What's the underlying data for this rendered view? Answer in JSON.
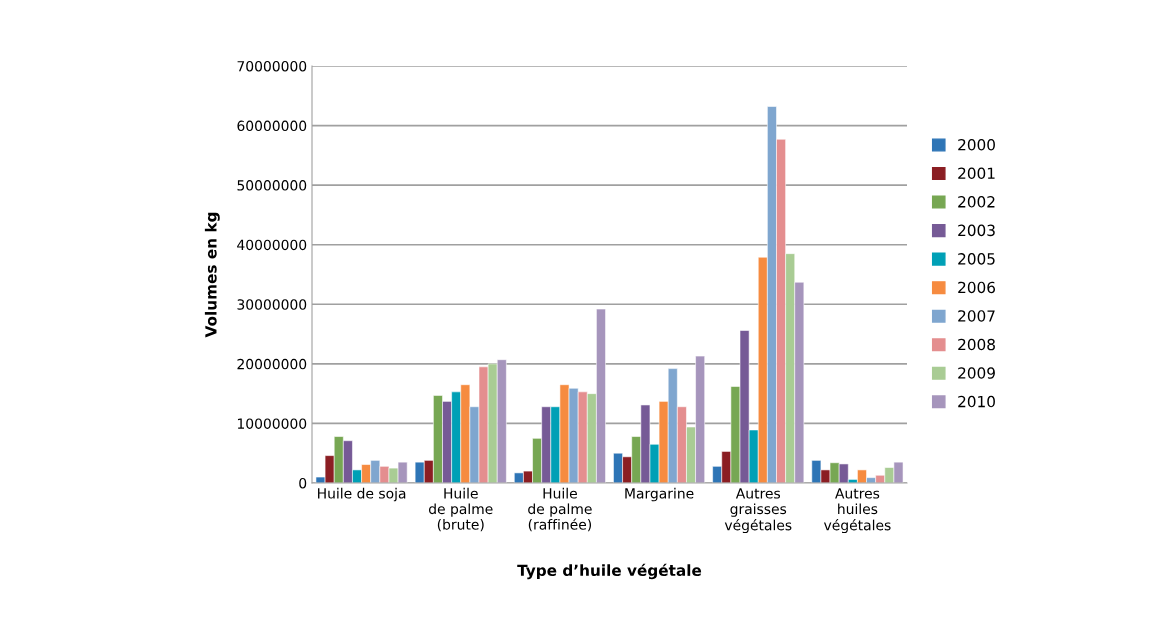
{
  "chart_data": {
    "type": "bar",
    "xlabel": "Type d’huile végétale",
    "ylabel": "Volumes en kg",
    "categories": [
      "Huile de soja",
      "Huile\nde palme\n(brute)",
      "Huile\nde palme\n(raffinée)",
      "Margarine",
      "Autres\ngraisses\nvégétales",
      "Autres\nhuiles\nvégétales"
    ],
    "ylim": [
      0,
      70000000
    ],
    "yticks": [
      0,
      10000000,
      20000000,
      30000000,
      40000000,
      50000000,
      60000000,
      70000000
    ],
    "grid": "y",
    "legend": "right",
    "series": [
      {
        "name": "2000",
        "color": "#2e75b6",
        "values": [
          1000000,
          3500000,
          1700000,
          5000000,
          2800000,
          3800000
        ]
      },
      {
        "name": "2001",
        "color": "#8b1e23",
        "values": [
          4600000,
          3800000,
          2000000,
          4400000,
          5300000,
          2200000
        ]
      },
      {
        "name": "2002",
        "color": "#77a753",
        "values": [
          7800000,
          14700000,
          7500000,
          7800000,
          16200000,
          3400000
        ]
      },
      {
        "name": "2003",
        "color": "#765a96",
        "values": [
          7100000,
          13700000,
          12800000,
          13100000,
          25600000,
          3200000
        ]
      },
      {
        "name": "2005",
        "color": "#00a0b6",
        "values": [
          2200000,
          15300000,
          12800000,
          6500000,
          8900000,
          600000
        ]
      },
      {
        "name": "2006",
        "color": "#f68b40",
        "values": [
          3100000,
          16500000,
          16500000,
          13700000,
          37900000,
          2200000
        ]
      },
      {
        "name": "2007",
        "color": "#7fa6cf",
        "values": [
          3800000,
          12800000,
          15900000,
          19200000,
          63200000,
          900000
        ]
      },
      {
        "name": "2008",
        "color": "#e48e8f",
        "values": [
          2800000,
          19500000,
          15300000,
          12800000,
          57700000,
          1300000
        ]
      },
      {
        "name": "2009",
        "color": "#a9cc94",
        "values": [
          2500000,
          20000000,
          15000000,
          9400000,
          38500000,
          2600000
        ]
      },
      {
        "name": "2010",
        "color": "#a695bc",
        "values": [
          3500000,
          20700000,
          29200000,
          21300000,
          33700000,
          3500000
        ]
      }
    ]
  }
}
